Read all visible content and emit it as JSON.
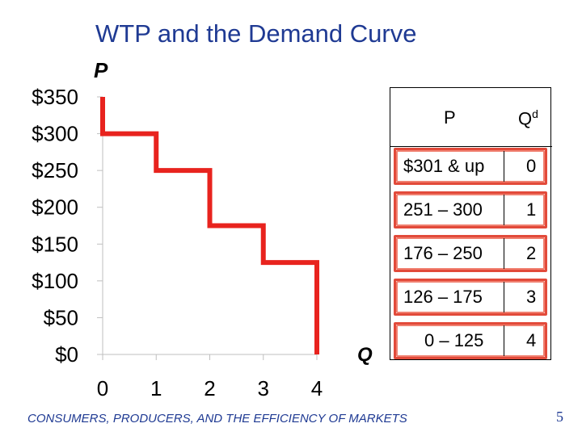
{
  "slide": {
    "title": "WTP and the Demand Curve",
    "footer": "CONSUMERS, PRODUCERS, AND THE EFFICIENCY OF MARKETS",
    "page_number": "5"
  },
  "colors": {
    "title": "#1f3a93",
    "curve": "#e8231e",
    "table_outline": "#e24a3a"
  },
  "chart_data": {
    "type": "line",
    "step": true,
    "xlabel": "Q",
    "ylabel": "P",
    "x_ticks": [
      "0",
      "1",
      "2",
      "3",
      "4"
    ],
    "y_ticks": [
      "$0",
      "$50",
      "$100",
      "$150",
      "$200",
      "$250",
      "$300",
      "$350"
    ],
    "xlim": [
      0,
      4
    ],
    "ylim": [
      0,
      350
    ],
    "grid": false,
    "series": [
      {
        "points": [
          [
            0,
            350
          ],
          [
            0,
            300
          ],
          [
            1,
            300
          ],
          [
            1,
            250
          ],
          [
            2,
            250
          ],
          [
            2,
            175
          ],
          [
            3,
            175
          ],
          [
            3,
            125
          ],
          [
            4,
            125
          ],
          [
            4,
            0
          ]
        ]
      }
    ]
  },
  "table": {
    "headers": {
      "price": "P",
      "qty": "Q",
      "qty_superscript": "d"
    },
    "rows": [
      {
        "price": "$301 & up",
        "qty": "0"
      },
      {
        "price": "251 – 300",
        "qty": "1"
      },
      {
        "price": "176 – 250",
        "qty": "2"
      },
      {
        "price": "126 – 175",
        "qty": "3"
      },
      {
        "price": "0 – 125",
        "qty": "4"
      }
    ]
  }
}
